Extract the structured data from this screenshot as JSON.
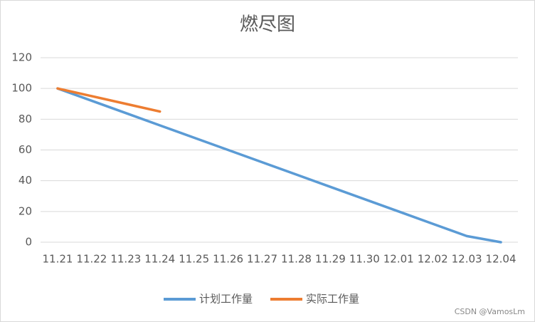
{
  "chart_data": {
    "type": "line",
    "title": "燃尽图",
    "categories": [
      "11.21",
      "11.22",
      "11.23",
      "11.24",
      "11.25",
      "11.26",
      "11.27",
      "11.28",
      "11.29",
      "11.30",
      "12.01",
      "12.02",
      "12.03",
      "12.04"
    ],
    "series": [
      {
        "name": "计划工作量",
        "color": "#5b9bd5",
        "values": [
          100,
          92,
          84,
          76,
          68,
          60,
          52,
          44,
          36,
          28,
          20,
          12,
          4,
          0
        ]
      },
      {
        "name": "实际工作量",
        "color": "#ed7d31",
        "values": [
          100,
          95,
          90,
          85,
          null,
          null,
          null,
          null,
          null,
          null,
          null,
          null,
          null,
          null
        ]
      }
    ],
    "ylim": [
      0,
      120
    ],
    "yticks": [
      0,
      20,
      40,
      60,
      80,
      100,
      120
    ],
    "grid": true,
    "legend": "bottom",
    "watermark": "CSDN @VamosLm"
  }
}
